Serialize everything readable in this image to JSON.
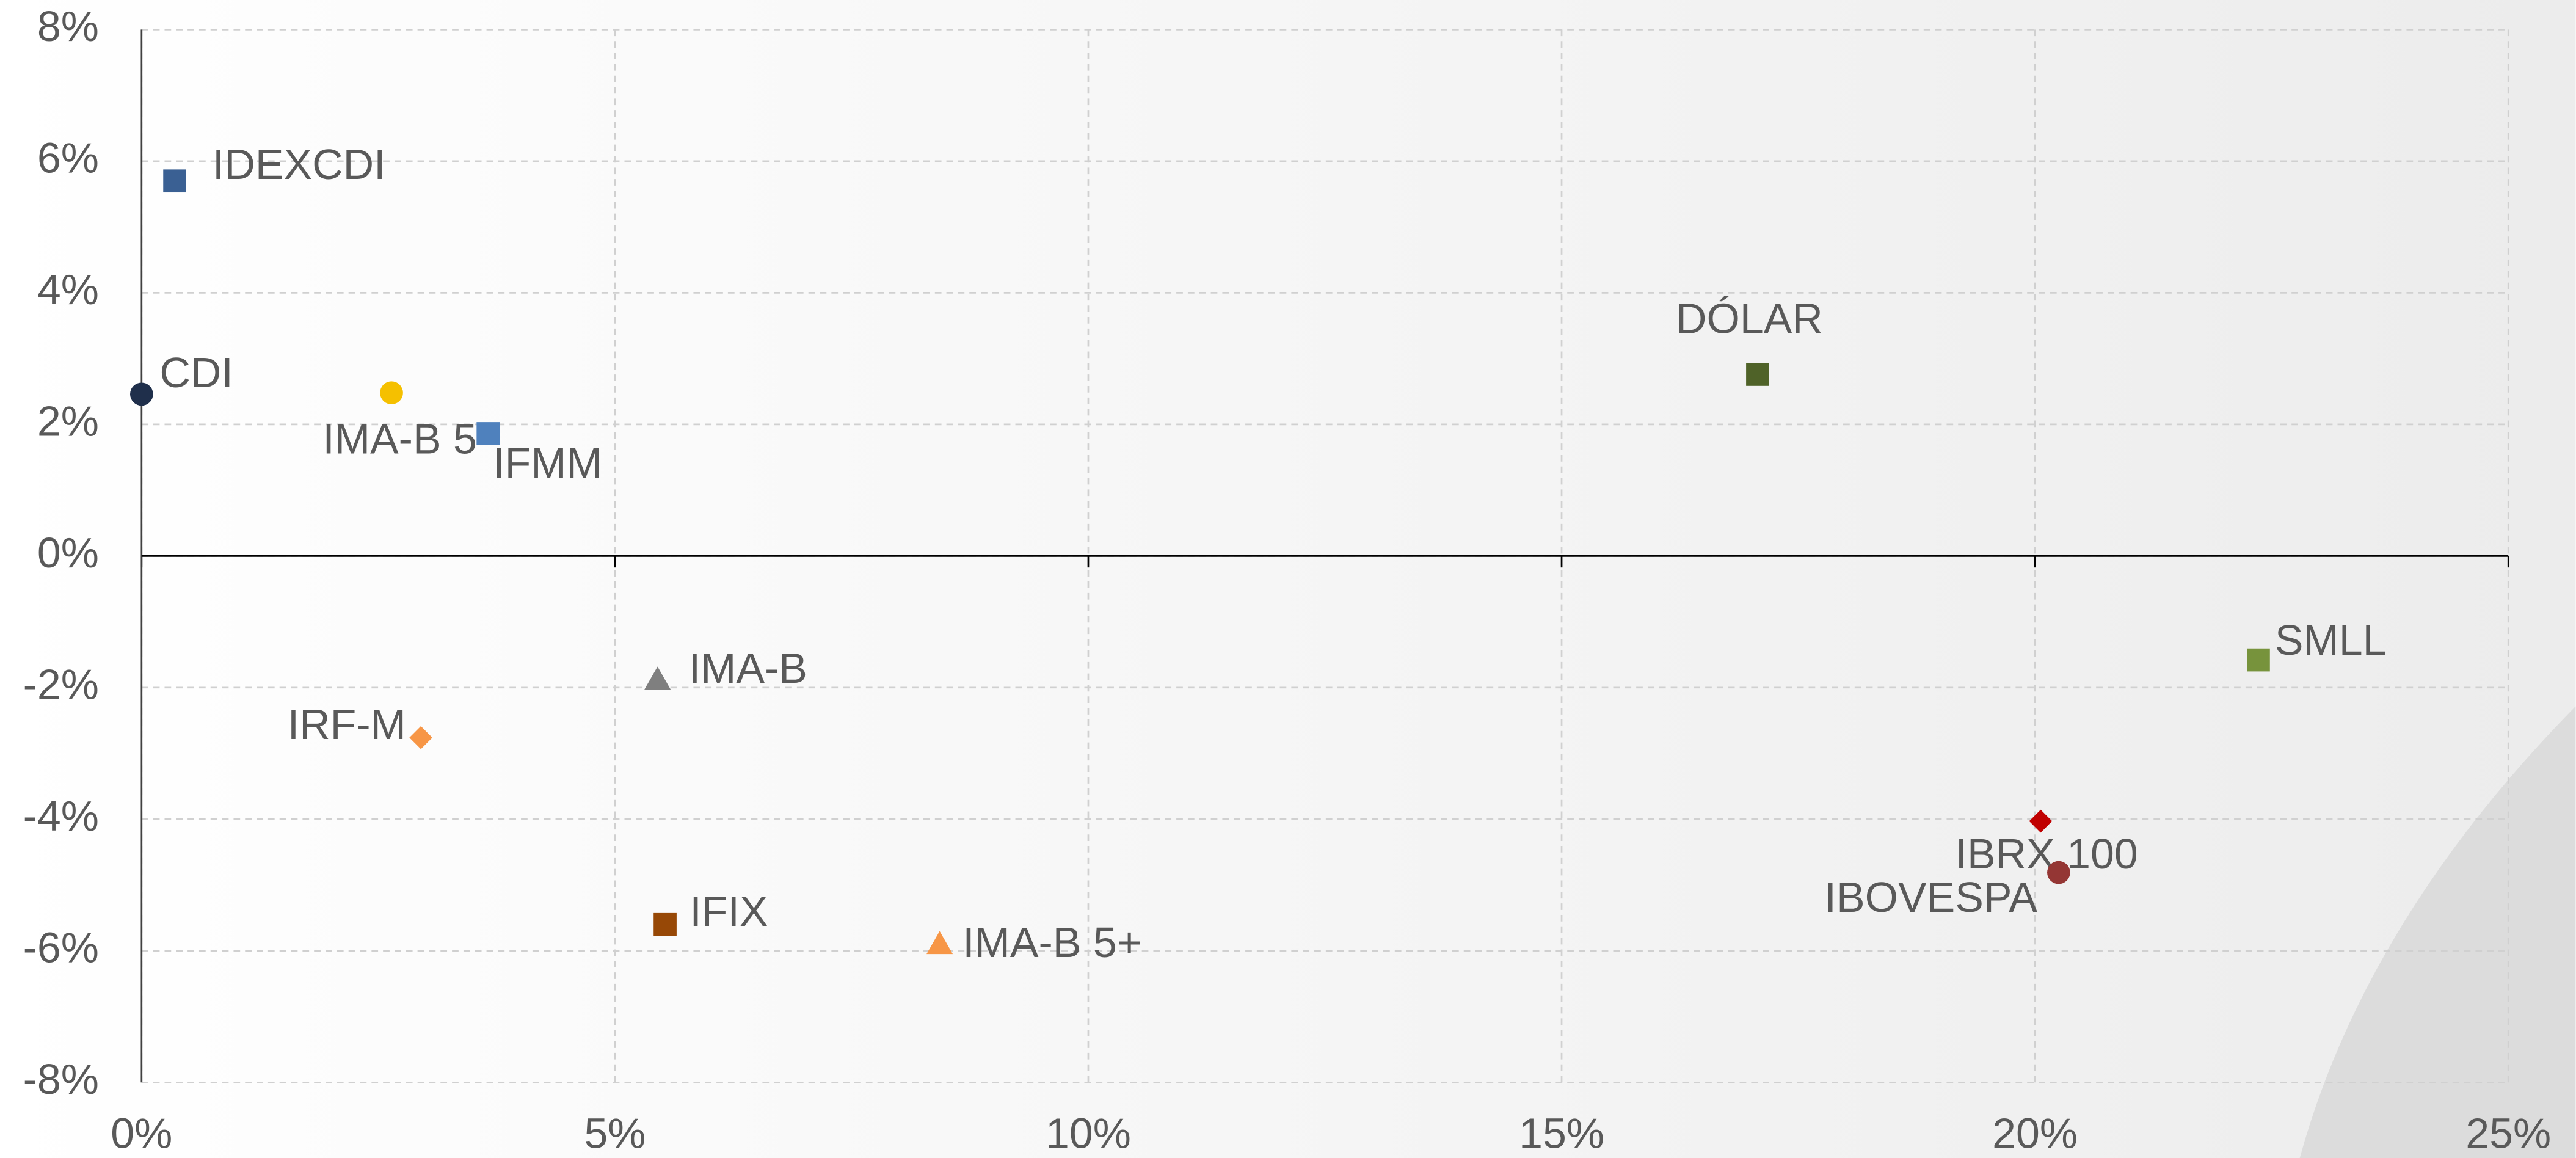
{
  "chart_data": {
    "type": "scatter",
    "xlim": [
      0,
      25
    ],
    "xticks": [
      {
        "value": 0,
        "label": "0%"
      },
      {
        "value": 5,
        "label": "5%"
      },
      {
        "value": 10,
        "label": "10%"
      },
      {
        "value": 15,
        "label": "15%"
      },
      {
        "value": 20,
        "label": "20%"
      },
      {
        "value": 25,
        "label": "25%"
      }
    ],
    "ylim": [
      -8,
      8
    ],
    "yticks": [
      {
        "value": -8,
        "label": "-8%"
      },
      {
        "value": -6,
        "label": "-6%"
      },
      {
        "value": -4,
        "label": "-4%"
      },
      {
        "value": -2,
        "label": "-2%"
      },
      {
        "value": 0,
        "label": "0%"
      },
      {
        "value": 2,
        "label": "2%"
      },
      {
        "value": 4,
        "label": "4%"
      },
      {
        "value": 6,
        "label": "6%"
      },
      {
        "value": 8,
        "label": "8%"
      }
    ],
    "grid": true,
    "series": [
      {
        "name": "CDI",
        "color": "#1f2f4b",
        "marker": "circle",
        "x": [
          0
        ],
        "values": [
          2.46
        ]
      },
      {
        "name": "IDEXCDI",
        "color": "#3a6093",
        "marker": "square",
        "x": [
          0.35
        ],
        "values": [
          5.7
        ]
      },
      {
        "name": "IMA-B 5",
        "color": "#f5c000",
        "marker": "circle",
        "x": [
          2.64
        ],
        "values": [
          2.48
        ]
      },
      {
        "name": "IFMM",
        "color": "#4f81bd",
        "marker": "square",
        "x": [
          3.66
        ],
        "values": [
          1.86
        ]
      },
      {
        "name": "DÓLAR",
        "color": "#4f6228",
        "marker": "square",
        "x": [
          17.07
        ],
        "values": [
          2.76
        ]
      },
      {
        "name": "SMLL",
        "color": "#77933c",
        "marker": "square",
        "x": [
          22.36
        ],
        "values": [
          -1.58
        ]
      },
      {
        "name": "IMA-B",
        "color": "#7f7f7f",
        "marker": "triangle",
        "x": [
          5.45
        ],
        "values": [
          -1.88
        ]
      },
      {
        "name": "IRF-M",
        "color": "#f79646",
        "marker": "diamond",
        "x": [
          2.95
        ],
        "values": [
          -2.76
        ]
      },
      {
        "name": "IBRX 100",
        "color": "#c00000",
        "marker": "diamond",
        "x": [
          20.06
        ],
        "values": [
          -4.03
        ]
      },
      {
        "name": "IBOVESPA",
        "color": "#943634",
        "marker": "circle",
        "x": [
          20.25
        ],
        "values": [
          -4.81
        ]
      },
      {
        "name": "IFIX",
        "color": "#974806",
        "marker": "square",
        "x": [
          5.53
        ],
        "values": [
          -5.6
        ]
      },
      {
        "name": "IMA-B 5+",
        "color": "#f79646",
        "marker": "triangle",
        "x": [
          8.43
        ],
        "values": [
          -5.9
        ]
      }
    ]
  }
}
